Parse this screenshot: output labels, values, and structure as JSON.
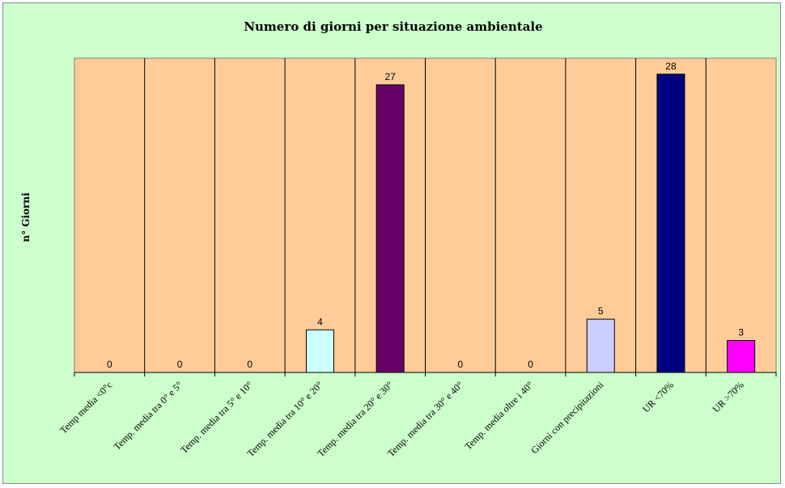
{
  "chart_data": {
    "type": "bar",
    "title": "Numero di giorni per situazione ambientale",
    "xlabel": "",
    "ylabel": "n° Giorni",
    "categories": [
      "Temp media <0°c",
      "Temp. media tra 0° e 5°",
      "Temp. media tra 5° e 10°",
      "Temp. media tra 10° e 20°",
      "Temp. media tra 20° e 30°",
      "Temp. media tra 30° e 40°",
      "Temp. media oltre i 40°",
      "Giorni con precipitazioni",
      "UR <70%",
      "UR >70%"
    ],
    "values": [
      0,
      0,
      0,
      4,
      27,
      0,
      0,
      5,
      28,
      3
    ],
    "bar_colors": [
      "#ffffcc",
      "#ffffcc",
      "#ffffcc",
      "#ccffff",
      "#660066",
      "#ffffcc",
      "#ffffcc",
      "#ccccff",
      "#000080",
      "#ff00ff"
    ],
    "ylim": [
      0,
      29.5
    ],
    "grid": false,
    "legend": "none",
    "plot_background": "#ffcc99",
    "chart_background": "#ccffcc"
  }
}
